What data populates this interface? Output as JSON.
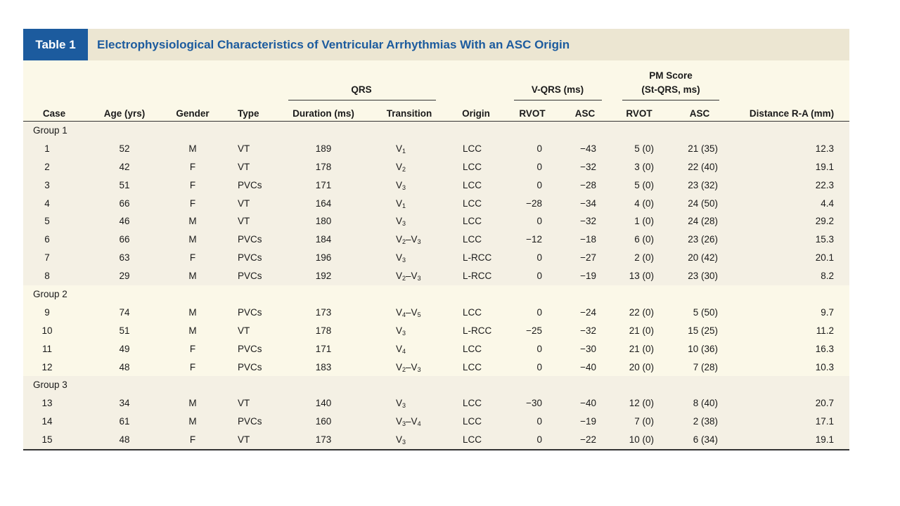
{
  "table": {
    "badge": "Table 1",
    "title": "Electrophysiological Characteristics of Ventricular Arrhythmias With an ASC Origin",
    "headers": {
      "qrs_group": "QRS",
      "vqrs_group": "V-QRS (ms)",
      "pm_group_line1": "PM Score",
      "pm_group_line2": "(St-QRS, ms)",
      "case": "Case",
      "age": "Age (yrs)",
      "gender": "Gender",
      "type": "Type",
      "duration": "Duration (ms)",
      "transition": "Transition",
      "origin": "Origin",
      "vqrs_rvot": "RVOT",
      "vqrs_asc": "ASC",
      "pm_rvot": "RVOT",
      "pm_asc": "ASC",
      "distance": "Distance R-A (mm)"
    },
    "groups": [
      {
        "label": "Group 1",
        "rows": [
          {
            "case": "1",
            "age": "52",
            "gender": "M",
            "type": "VT",
            "duration": "189",
            "transition": "V1",
            "origin": "LCC",
            "vqrs_rvot": "0",
            "vqrs_asc": "−43",
            "pm_rvot": "5 (0)",
            "pm_asc": "21 (35)",
            "distance": "12.3"
          },
          {
            "case": "2",
            "age": "42",
            "gender": "F",
            "type": "VT",
            "duration": "178",
            "transition": "V2",
            "origin": "LCC",
            "vqrs_rvot": "0",
            "vqrs_asc": "−32",
            "pm_rvot": "3 (0)",
            "pm_asc": "22 (40)",
            "distance": "19.1"
          },
          {
            "case": "3",
            "age": "51",
            "gender": "F",
            "type": "PVCs",
            "duration": "171",
            "transition": "V3",
            "origin": "LCC",
            "vqrs_rvot": "0",
            "vqrs_asc": "−28",
            "pm_rvot": "5 (0)",
            "pm_asc": "23 (32)",
            "distance": "22.3"
          },
          {
            "case": "4",
            "age": "66",
            "gender": "F",
            "type": "VT",
            "duration": "164",
            "transition": "V1",
            "origin": "LCC",
            "vqrs_rvot": "−28",
            "vqrs_asc": "−34",
            "pm_rvot": "4 (0)",
            "pm_asc": "24 (50)",
            "distance": "4.4"
          },
          {
            "case": "5",
            "age": "46",
            "gender": "M",
            "type": "VT",
            "duration": "180",
            "transition": "V3",
            "origin": "LCC",
            "vqrs_rvot": "0",
            "vqrs_asc": "−32",
            "pm_rvot": "1 (0)",
            "pm_asc": "24 (28)",
            "distance": "29.2"
          },
          {
            "case": "6",
            "age": "66",
            "gender": "M",
            "type": "PVCs",
            "duration": "184",
            "transition": "V2–V3",
            "origin": "LCC",
            "vqrs_rvot": "−12",
            "vqrs_asc": "−18",
            "pm_rvot": "6 (0)",
            "pm_asc": "23 (26)",
            "distance": "15.3"
          },
          {
            "case": "7",
            "age": "63",
            "gender": "F",
            "type": "PVCs",
            "duration": "196",
            "transition": "V3",
            "origin": "L-RCC",
            "vqrs_rvot": "0",
            "vqrs_asc": "−27",
            "pm_rvot": "2 (0)",
            "pm_asc": "20 (42)",
            "distance": "20.1"
          },
          {
            "case": "8",
            "age": "29",
            "gender": "M",
            "type": "PVCs",
            "duration": "192",
            "transition": "V2–V3",
            "origin": "L-RCC",
            "vqrs_rvot": "0",
            "vqrs_asc": "−19",
            "pm_rvot": "13 (0)",
            "pm_asc": "23 (30)",
            "distance": "8.2"
          }
        ]
      },
      {
        "label": "Group 2",
        "rows": [
          {
            "case": "9",
            "age": "74",
            "gender": "M",
            "type": "PVCs",
            "duration": "173",
            "transition": "V4–V5",
            "origin": "LCC",
            "vqrs_rvot": "0",
            "vqrs_asc": "−24",
            "pm_rvot": "22 (0)",
            "pm_asc": "5 (50)",
            "distance": "9.7"
          },
          {
            "case": "10",
            "age": "51",
            "gender": "M",
            "type": "VT",
            "duration": "178",
            "transition": "V3",
            "origin": "L-RCC",
            "vqrs_rvot": "−25",
            "vqrs_asc": "−32",
            "pm_rvot": "21 (0)",
            "pm_asc": "15 (25)",
            "distance": "11.2"
          },
          {
            "case": "11",
            "age": "49",
            "gender": "F",
            "type": "PVCs",
            "duration": "171",
            "transition": "V4",
            "origin": "LCC",
            "vqrs_rvot": "0",
            "vqrs_asc": "−30",
            "pm_rvot": "21 (0)",
            "pm_asc": "10 (36)",
            "distance": "16.3"
          },
          {
            "case": "12",
            "age": "48",
            "gender": "F",
            "type": "PVCs",
            "duration": "183",
            "transition": "V2–V3",
            "origin": "LCC",
            "vqrs_rvot": "0",
            "vqrs_asc": "−40",
            "pm_rvot": "20 (0)",
            "pm_asc": "7 (28)",
            "distance": "10.3"
          }
        ]
      },
      {
        "label": "Group 3",
        "rows": [
          {
            "case": "13",
            "age": "34",
            "gender": "M",
            "type": "VT",
            "duration": "140",
            "transition": "V3",
            "origin": "LCC",
            "vqrs_rvot": "−30",
            "vqrs_asc": "−40",
            "pm_rvot": "12 (0)",
            "pm_asc": "8 (40)",
            "distance": "20.7"
          },
          {
            "case": "14",
            "age": "61",
            "gender": "M",
            "type": "PVCs",
            "duration": "160",
            "transition": "V3–V4",
            "origin": "LCC",
            "vqrs_rvot": "0",
            "vqrs_asc": "−19",
            "pm_rvot": "7 (0)",
            "pm_asc": "2 (38)",
            "distance": "17.1"
          },
          {
            "case": "15",
            "age": "48",
            "gender": "F",
            "type": "VT",
            "duration": "173",
            "transition": "V3",
            "origin": "LCC",
            "vqrs_rvot": "0",
            "vqrs_asc": "−22",
            "pm_rvot": "10 (0)",
            "pm_asc": "6 (34)",
            "distance": "19.1"
          }
        ]
      }
    ]
  }
}
